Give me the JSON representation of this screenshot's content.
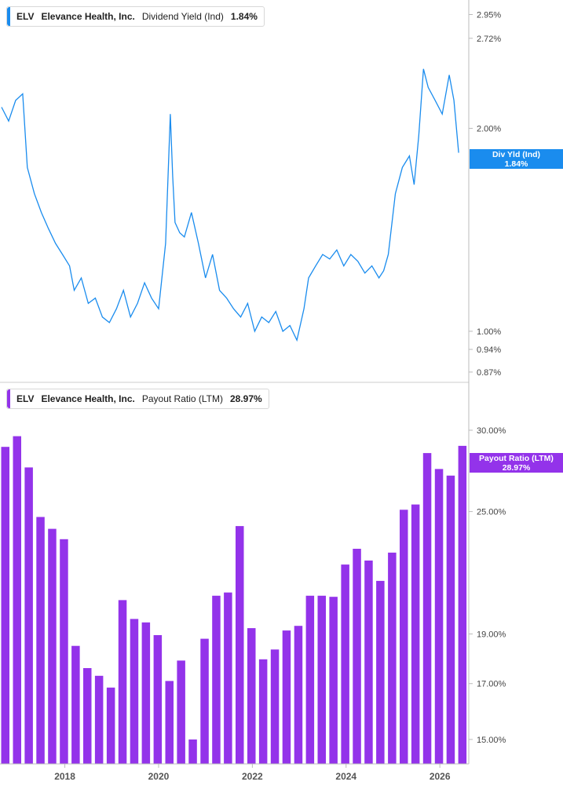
{
  "colors": {
    "yield": "#1a8cee",
    "payout": "#9333ea",
    "axis": "#bbbbbb"
  },
  "top_legend": {
    "ticker": "ELV",
    "name": "Elevance Health, Inc.",
    "metric": "Dividend Yield (Ind)",
    "value": "1.84%"
  },
  "top_tag": {
    "line1": "Div Yld (Ind)",
    "line2": "1.84%"
  },
  "bottom_legend": {
    "ticker": "ELV",
    "name": "Elevance Health, Inc.",
    "metric": "Payout Ratio (LTM)",
    "value": "28.97%"
  },
  "bottom_tag": {
    "line1": "Payout Ratio (LTM)",
    "line2": "28.97%"
  },
  "chart_data": [
    {
      "type": "line",
      "scale": "log",
      "ylim": [
        0.84,
        3.1
      ],
      "y_ticks": [
        "2.95%",
        "2.72%",
        "2.00%",
        "1.00%",
        "0.94%",
        "0.87%"
      ],
      "y_tick_values": [
        2.95,
        2.72,
        2.0,
        1.0,
        0.94,
        0.87
      ],
      "x_ticks": [
        "2018",
        "2020",
        "2022",
        "2024",
        "2026"
      ],
      "x_tick_values": [
        2018,
        2020,
        2022,
        2024,
        2026
      ],
      "series": [
        {
          "x": [
            2016.55,
            2016.7,
            2016.85,
            2017.0,
            2017.1,
            2017.25,
            2017.4,
            2017.55,
            2017.7,
            2017.85,
            2018.0,
            2018.1,
            2018.25,
            2018.4,
            2018.55,
            2018.7,
            2018.85,
            2019.0,
            2019.15,
            2019.3,
            2019.45,
            2019.6,
            2019.75,
            2019.9,
            2020.05,
            2020.15,
            2020.2,
            2020.25,
            2020.35,
            2020.45,
            2020.6,
            2020.75,
            2020.9,
            2021.05,
            2021.2,
            2021.35,
            2021.5,
            2021.65,
            2021.8,
            2021.95,
            2022.1,
            2022.25,
            2022.4,
            2022.55,
            2022.7,
            2022.85,
            2023.0,
            2023.1,
            2023.25,
            2023.4,
            2023.55,
            2023.7,
            2023.85,
            2024.0,
            2024.15,
            2024.3,
            2024.45,
            2024.6,
            2024.7,
            2024.8,
            2024.95,
            2025.1,
            2025.25,
            2025.35,
            2025.45,
            2025.55,
            2025.65,
            2025.8,
            2025.95,
            2026.1,
            2026.2,
            2026.3
          ],
          "values": [
            2.15,
            2.05,
            2.2,
            2.25,
            1.75,
            1.6,
            1.5,
            1.42,
            1.35,
            1.3,
            1.25,
            1.15,
            1.2,
            1.1,
            1.12,
            1.05,
            1.03,
            1.08,
            1.15,
            1.05,
            1.1,
            1.18,
            1.12,
            1.08,
            1.35,
            2.1,
            1.7,
            1.45,
            1.4,
            1.38,
            1.5,
            1.35,
            1.2,
            1.3,
            1.15,
            1.12,
            1.08,
            1.05,
            1.1,
            1.0,
            1.05,
            1.03,
            1.07,
            1.0,
            1.02,
            0.97,
            1.08,
            1.2,
            1.25,
            1.3,
            1.28,
            1.32,
            1.25,
            1.3,
            1.27,
            1.22,
            1.25,
            1.2,
            1.23,
            1.3,
            1.6,
            1.75,
            1.82,
            1.65,
            1.95,
            2.45,
            2.3,
            2.2,
            2.1,
            2.4,
            2.2,
            1.84
          ]
        }
      ]
    },
    {
      "type": "bar",
      "scale": "log",
      "ylim": [
        14.2,
        33.4
      ],
      "y_ticks": [
        "30.00%",
        "25.00%",
        "19.00%",
        "17.00%",
        "15.00%"
      ],
      "y_tick_values": [
        30,
        25,
        19,
        17,
        15
      ],
      "x_ticks": [
        "2018",
        "2020",
        "2022",
        "2024",
        "2026"
      ],
      "x_tick_values": [
        2018,
        2020,
        2022,
        2024,
        2026
      ],
      "series": [
        {
          "x": [
            2016.63,
            2016.88,
            2017.13,
            2017.38,
            2017.63,
            2017.88,
            2018.13,
            2018.38,
            2018.63,
            2018.88,
            2019.13,
            2019.38,
            2019.63,
            2019.88,
            2020.13,
            2020.38,
            2020.63,
            2020.88,
            2021.13,
            2021.38,
            2021.63,
            2021.88,
            2022.13,
            2022.38,
            2022.63,
            2022.88,
            2023.13,
            2023.38,
            2023.63,
            2023.88,
            2024.13,
            2024.38,
            2024.63,
            2024.88,
            2025.13,
            2025.38,
            2025.63,
            2025.88,
            2026.13,
            2026.38
          ],
          "values": [
            28.9,
            29.6,
            27.6,
            24.7,
            24.05,
            23.5,
            18.5,
            17.6,
            17.3,
            16.85,
            20.5,
            19.65,
            19.5,
            18.95,
            17.1,
            17.9,
            15.0,
            18.8,
            20.7,
            20.85,
            24.2,
            19.25,
            17.95,
            18.35,
            19.15,
            19.35,
            20.7,
            20.7,
            20.65,
            22.2,
            23.0,
            22.4,
            21.4,
            22.8,
            25.1,
            25.4,
            28.5,
            27.5,
            27.1,
            28.97
          ]
        }
      ]
    }
  ]
}
